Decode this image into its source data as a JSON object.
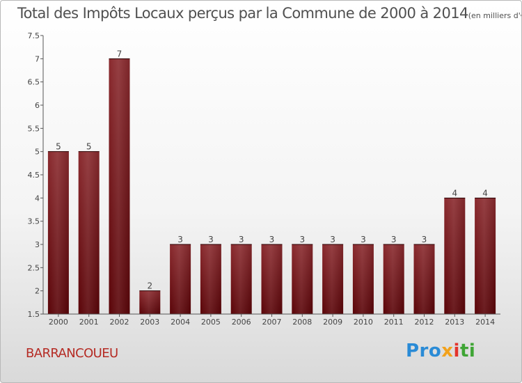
{
  "title": "Total des Impôts Locaux perçus par la Commune de 2000 à 2014",
  "title_unit": "(en milliers d'€)",
  "commune": "BARRANCOUEU",
  "logo": {
    "part1": "Pro",
    "part2": "x",
    "part3": "i",
    "part4": "ti"
  },
  "colors": {
    "bar_top": "#8a2a2e",
    "bar_bottom": "#5a0408",
    "axis": "#555555",
    "commune": "#b52b24"
  },
  "chart_data": {
    "type": "bar",
    "title": "Total des Impôts Locaux perçus par la Commune de 2000 à 2014",
    "xlabel": "",
    "ylabel": "",
    "categories": [
      "2000",
      "2001",
      "2002",
      "2003",
      "2004",
      "2005",
      "2006",
      "2007",
      "2008",
      "2009",
      "2010",
      "2011",
      "2012",
      "2013",
      "2014"
    ],
    "values": [
      5,
      5,
      7,
      2,
      3,
      3,
      3,
      3,
      3,
      3,
      3,
      3,
      3,
      4,
      4
    ],
    "value_labels": [
      "5",
      "5",
      "7",
      "2",
      "3",
      "3",
      "3",
      "3",
      "3",
      "3",
      "3",
      "3",
      "3",
      "4",
      "4"
    ],
    "yticks": [
      "1.5",
      "2",
      "2.5",
      "3",
      "3.5",
      "4",
      "4.5",
      "5",
      "5.5",
      "6",
      "6.5",
      "7",
      "7.5"
    ],
    "ylim": [
      1.5,
      7.5
    ],
    "grid": false,
    "legend": "none"
  }
}
